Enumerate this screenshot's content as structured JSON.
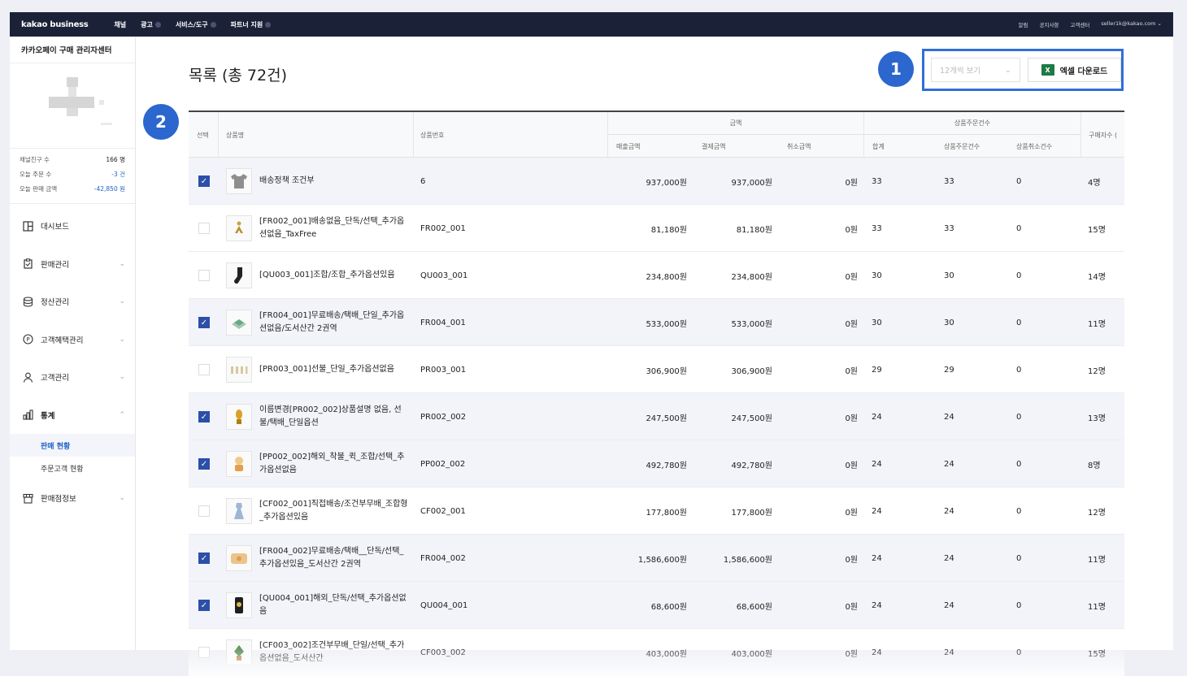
{
  "topbar": {
    "logo": "kakao business",
    "nav": [
      "채널",
      "광고",
      "서비스/도구",
      "파트너 지원"
    ],
    "right": [
      "알림",
      "공지사항",
      "고객센터",
      "seller1k@kakao.com ⌄"
    ]
  },
  "sidebar": {
    "brand": "카카오페이 구매 관리자센터",
    "stats": [
      {
        "label": "채널친구 수",
        "value": "166 명"
      },
      {
        "label": "오늘 주문 수",
        "value": "-3 건"
      },
      {
        "label": "오늘 판매 금액",
        "value": "-42,850 원"
      }
    ],
    "menu": [
      {
        "label": "대시보드",
        "icon": "dashboard-icon"
      },
      {
        "label": "판매관리",
        "icon": "clipboard-icon"
      },
      {
        "label": "정산관리",
        "icon": "database-icon"
      },
      {
        "label": "고객혜택관리",
        "icon": "point-icon"
      },
      {
        "label": "고객관리",
        "icon": "user-icon"
      },
      {
        "label": "통계",
        "icon": "bar-chart-icon"
      }
    ],
    "submenu": [
      "판매 현황",
      "주문고객 현황"
    ],
    "last_menu": {
      "label": "판매점정보",
      "icon": "store-icon"
    },
    "chevron_down": "⌄",
    "chevron_up": "⌃"
  },
  "main": {
    "title": "목록 (총 72건)",
    "select_value": "12개씩 보기",
    "excel_label": "엑셀 다운로드",
    "excel_icon_text": "X",
    "badges": [
      "1",
      "2"
    ]
  },
  "table": {
    "headers": {
      "select": "선택",
      "name": "상품명",
      "code": "상품번호",
      "amount_group": "금액",
      "sales": "매출금액",
      "paid": "결제금액",
      "cancel_amt": "취소금액",
      "orders_group": "상품주문건수",
      "total": "합계",
      "order_cnt": "상품주문건수",
      "cancel_cnt": "상품취소건수",
      "buyers": "구매자수 ("
    },
    "rows": [
      {
        "checked": true,
        "name": "배송정책 조건부",
        "code": "6",
        "sales": "937,000원",
        "paid": "937,000원",
        "cancel": "0원",
        "total": "33",
        "orders": "33",
        "cancels": "0",
        "buyers": "4명",
        "thumb": "tshirt-icon"
      },
      {
        "checked": false,
        "name": "[FR002_001]배송없음_단독/선택_추가옵션없음_TaxFree",
        "code": "FR002_001",
        "sales": "81,180원",
        "paid": "81,180원",
        "cancel": "0원",
        "total": "33",
        "orders": "33",
        "cancels": "0",
        "buyers": "15명",
        "thumb": "figure-icon"
      },
      {
        "checked": false,
        "name": "[QU003_001]조합/조합_추가옵션있음",
        "code": "QU003_001",
        "sales": "234,800원",
        "paid": "234,800원",
        "cancel": "0원",
        "total": "30",
        "orders": "30",
        "cancels": "0",
        "buyers": "14명",
        "thumb": "sock-icon"
      },
      {
        "checked": true,
        "name": "[FR004_001]무료배송/택배_단일_추가옵션없음/도서산간 2권역",
        "code": "FR004_001",
        "sales": "533,000원",
        "paid": "533,000원",
        "cancel": "0원",
        "total": "30",
        "orders": "30",
        "cancels": "0",
        "buyers": "11명",
        "thumb": "box-icon"
      },
      {
        "checked": false,
        "name": "[PR003_001]선불_단일_추가옵션없음",
        "code": "PR003_001",
        "sales": "306,900원",
        "paid": "306,900원",
        "cancel": "0원",
        "total": "29",
        "orders": "29",
        "cancels": "0",
        "buyers": "12명",
        "thumb": "bottles-icon"
      },
      {
        "checked": true,
        "name": "이름변경[PR002_002]상품설명 없음, 선불/택배_단일옵션",
        "code": "PR002_002",
        "sales": "247,500원",
        "paid": "247,500원",
        "cancel": "0원",
        "total": "24",
        "orders": "24",
        "cancels": "0",
        "buyers": "13명",
        "thumb": "trophy-icon"
      },
      {
        "checked": true,
        "name": "[PP002_002]해외_착불_퀵_조합/선택_추가옵션없음",
        "code": "PP002_002",
        "sales": "492,780원",
        "paid": "492,780원",
        "cancel": "0원",
        "total": "24",
        "orders": "24",
        "cancels": "0",
        "buyers": "8명",
        "thumb": "doll-icon"
      },
      {
        "checked": false,
        "name": "[CF002_001]직접배송/조건부무배_조합형_추가옵션있음",
        "code": "CF002_001",
        "sales": "177,800원",
        "paid": "177,800원",
        "cancel": "0원",
        "total": "24",
        "orders": "24",
        "cancels": "0",
        "buyers": "12명",
        "thumb": "dress-icon"
      },
      {
        "checked": true,
        "name": "[FR004_002]무료배송/택배__단독/선택_추가옵션있음_도서산간 2권역",
        "code": "FR004_002",
        "sales": "1,586,600원",
        "paid": "1,586,600원",
        "cancel": "0원",
        "total": "24",
        "orders": "24",
        "cancels": "0",
        "buyers": "11명",
        "thumb": "pillow-icon"
      },
      {
        "checked": true,
        "name": "[QU004_001]해외_단독/선택_추가옵션없음",
        "code": "QU004_001",
        "sales": "68,600원",
        "paid": "68,600원",
        "cancel": "0원",
        "total": "24",
        "orders": "24",
        "cancels": "0",
        "buyers": "11명",
        "thumb": "phonecase-icon"
      },
      {
        "checked": false,
        "name": "[CF003_002]조건부무배_단일/선택_추가옵션없음_도서산간",
        "code": "CF003_002",
        "sales": "403,000원",
        "paid": "403,000원",
        "cancel": "0원",
        "total": "24",
        "orders": "24",
        "cancels": "0",
        "buyers": "15명",
        "thumb": "plant-icon"
      }
    ]
  },
  "colors": {
    "accent": "#2c66cf",
    "checkbox": "#2c4fa8",
    "topbar": "#1b2238",
    "negative": "#1b60c9"
  }
}
